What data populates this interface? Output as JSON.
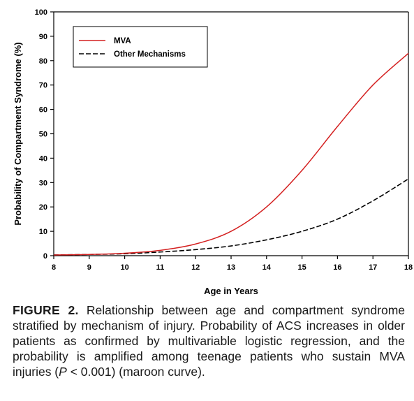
{
  "chart_data": {
    "type": "line",
    "title": "",
    "xlabel": "Age in Years",
    "ylabel": "Probability of Compartment Syndrome (%)",
    "xlim": [
      8,
      18
    ],
    "ylim": [
      0,
      100
    ],
    "x_ticks": [
      "8",
      "9",
      "10",
      "11",
      "12",
      "13",
      "14",
      "15",
      "16",
      "17",
      "18"
    ],
    "y_ticks": [
      "0",
      "10",
      "20",
      "30",
      "40",
      "50",
      "60",
      "70",
      "80",
      "90",
      "100"
    ],
    "grid": false,
    "legend_position": "top-left",
    "x": [
      8,
      9,
      10,
      11,
      12,
      13,
      14,
      15,
      16,
      17,
      18
    ],
    "series": [
      {
        "name": "MVA",
        "color": "#d42020",
        "line_style": "solid",
        "values": [
          0.3,
          0.5,
          1.0,
          2.2,
          4.8,
          10,
          20,
          35,
          53,
          70,
          83
        ]
      },
      {
        "name": "Other Mechanisms",
        "color": "#000000",
        "line_style": "dashed",
        "values": [
          0.3,
          0.5,
          0.8,
          1.5,
          2.5,
          4,
          6.5,
          10,
          15,
          22.5,
          31.5
        ]
      }
    ]
  },
  "caption": {
    "label": "FIGURE 2.",
    "text_before": " Relationship between age and compartment syndrome stratified by mechanism of injury. Probability of ACS increases in older patients as confirmed by multivariable logistic regression, and the probability is amplified among teenage patients who sustain MVA injuries (",
    "p_symbol": "P",
    "text_after": " < 0.001) (maroon curve)."
  }
}
